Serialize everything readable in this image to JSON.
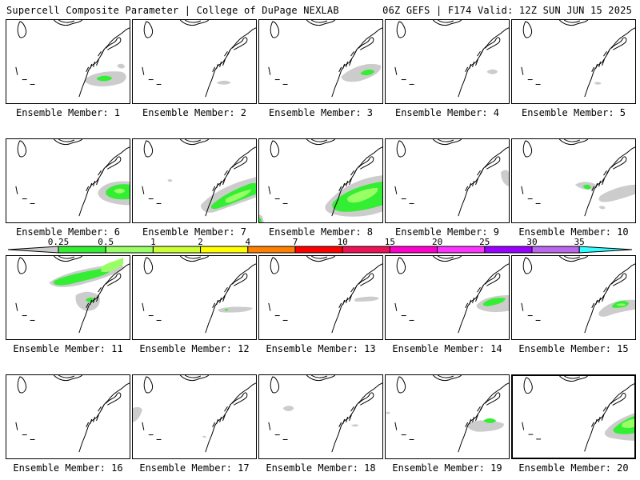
{
  "header": {
    "left": "Supercell Composite Parameter | College of DuPage NEXLAB",
    "right": "06Z GEFS | F174 Valid: 12Z SUN JUN 15 2025"
  },
  "colors": {
    "gray": "#cccccc",
    "green_dark": "#33ee33",
    "green_light": "#99ff66",
    "yellow_green": "#ccff33",
    "yellow": "#ffff00",
    "orange": "#ff8000",
    "red": "#ff0000",
    "crimson": "#ee1155",
    "magenta": "#ff00cc",
    "bright_magenta": "#ff33ff",
    "purple": "#9900ff",
    "lavender": "#bb66ee",
    "cyan": "#33ffff"
  },
  "legend": {
    "ticks": [
      "0.25",
      "0.5",
      "1",
      "2",
      "4",
      "7",
      "10",
      "15",
      "20",
      "25",
      "30",
      "35"
    ],
    "colors": [
      "#cccccc",
      "#33ee33",
      "#99ff66",
      "#ccff33",
      "#ffff00",
      "#ff8000",
      "#ff0000",
      "#ee1155",
      "#ff00cc",
      "#ff33ff",
      "#9900ff",
      "#bb66ee",
      "#33ffff"
    ]
  },
  "members": [
    {
      "label": "Ensemble Member: 1",
      "selected": false
    },
    {
      "label": "Ensemble Member: 2",
      "selected": false
    },
    {
      "label": "Ensemble Member: 3",
      "selected": false
    },
    {
      "label": "Ensemble Member: 4",
      "selected": false
    },
    {
      "label": "Ensemble Member: 5",
      "selected": false
    },
    {
      "label": "Ensemble Member: 6",
      "selected": false
    },
    {
      "label": "Ensemble Member: 7",
      "selected": false
    },
    {
      "label": "Ensemble Member: 8",
      "selected": false
    },
    {
      "label": "Ensemble Member: 9",
      "selected": false
    },
    {
      "label": "Ensemble Member: 10",
      "selected": false
    },
    {
      "label": "Ensemble Member: 11",
      "selected": false
    },
    {
      "label": "Ensemble Member: 12",
      "selected": false
    },
    {
      "label": "Ensemble Member: 13",
      "selected": false
    },
    {
      "label": "Ensemble Member: 14",
      "selected": false
    },
    {
      "label": "Ensemble Member: 15",
      "selected": false
    },
    {
      "label": "Ensemble Member: 16",
      "selected": false
    },
    {
      "label": "Ensemble Member: 17",
      "selected": false
    },
    {
      "label": "Ensemble Member: 18",
      "selected": false
    },
    {
      "label": "Ensemble Member: 19",
      "selected": false
    },
    {
      "label": "Ensemble Member: 20",
      "selected": true
    }
  ]
}
